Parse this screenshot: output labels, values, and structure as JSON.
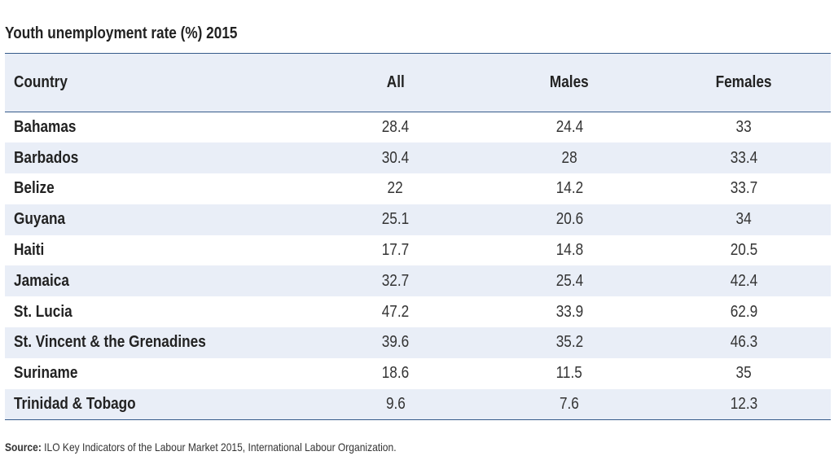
{
  "title": "Youth unemployment rate (%) 2015",
  "columns": [
    "Country",
    "All",
    "Males",
    "Females"
  ],
  "rows": [
    {
      "country": "Bahamas",
      "all": "28.4",
      "males": "24.4",
      "females": "33"
    },
    {
      "country": "Barbados",
      "all": "30.4",
      "males": "28",
      "females": "33.4"
    },
    {
      "country": "Belize",
      "all": "22",
      "males": "14.2",
      "females": "33.7"
    },
    {
      "country": "Guyana",
      "all": "25.1",
      "males": "20.6",
      "females": "34"
    },
    {
      "country": "Haiti",
      "all": "17.7",
      "males": "14.8",
      "females": "20.5"
    },
    {
      "country": "Jamaica",
      "all": "32.7",
      "males": "25.4",
      "females": "42.4"
    },
    {
      "country": "St. Lucia",
      "all": "47.2",
      "males": "33.9",
      "females": "62.9"
    },
    {
      "country": "St. Vincent & the Grenadines",
      "all": "39.6",
      "males": "35.2",
      "females": "46.3"
    },
    {
      "country": "Suriname",
      "all": "18.6",
      "males": "11.5",
      "females": "35"
    },
    {
      "country": "Trinidad & Tobago",
      "all": "9.6",
      "males": "7.6",
      "females": "12.3"
    }
  ],
  "source": {
    "label": "Source:",
    "text": " ILO Key Indicators of the Labour Market 2015, International Labour Organization."
  },
  "colors": {
    "header_bg": "#e9eef7",
    "stripe_bg": "#e9eef7",
    "rule": "#355a8a",
    "text": "#222222"
  },
  "chart_data": {
    "type": "table",
    "title": "Youth unemployment rate (%) 2015",
    "columns": [
      "Country",
      "All",
      "Males",
      "Females"
    ],
    "rows": [
      [
        "Bahamas",
        28.4,
        24.4,
        33
      ],
      [
        "Barbados",
        30.4,
        28,
        33.4
      ],
      [
        "Belize",
        22,
        14.2,
        33.7
      ],
      [
        "Guyana",
        25.1,
        20.6,
        34
      ],
      [
        "Haiti",
        17.7,
        14.8,
        20.5
      ],
      [
        "Jamaica",
        32.7,
        25.4,
        42.4
      ],
      [
        "St. Lucia",
        47.2,
        33.9,
        62.9
      ],
      [
        "St. Vincent & the Grenadines",
        39.6,
        35.2,
        46.3
      ],
      [
        "Suriname",
        18.6,
        11.5,
        35
      ],
      [
        "Trinidad & Tobago",
        9.6,
        7.6,
        12.3
      ]
    ]
  }
}
